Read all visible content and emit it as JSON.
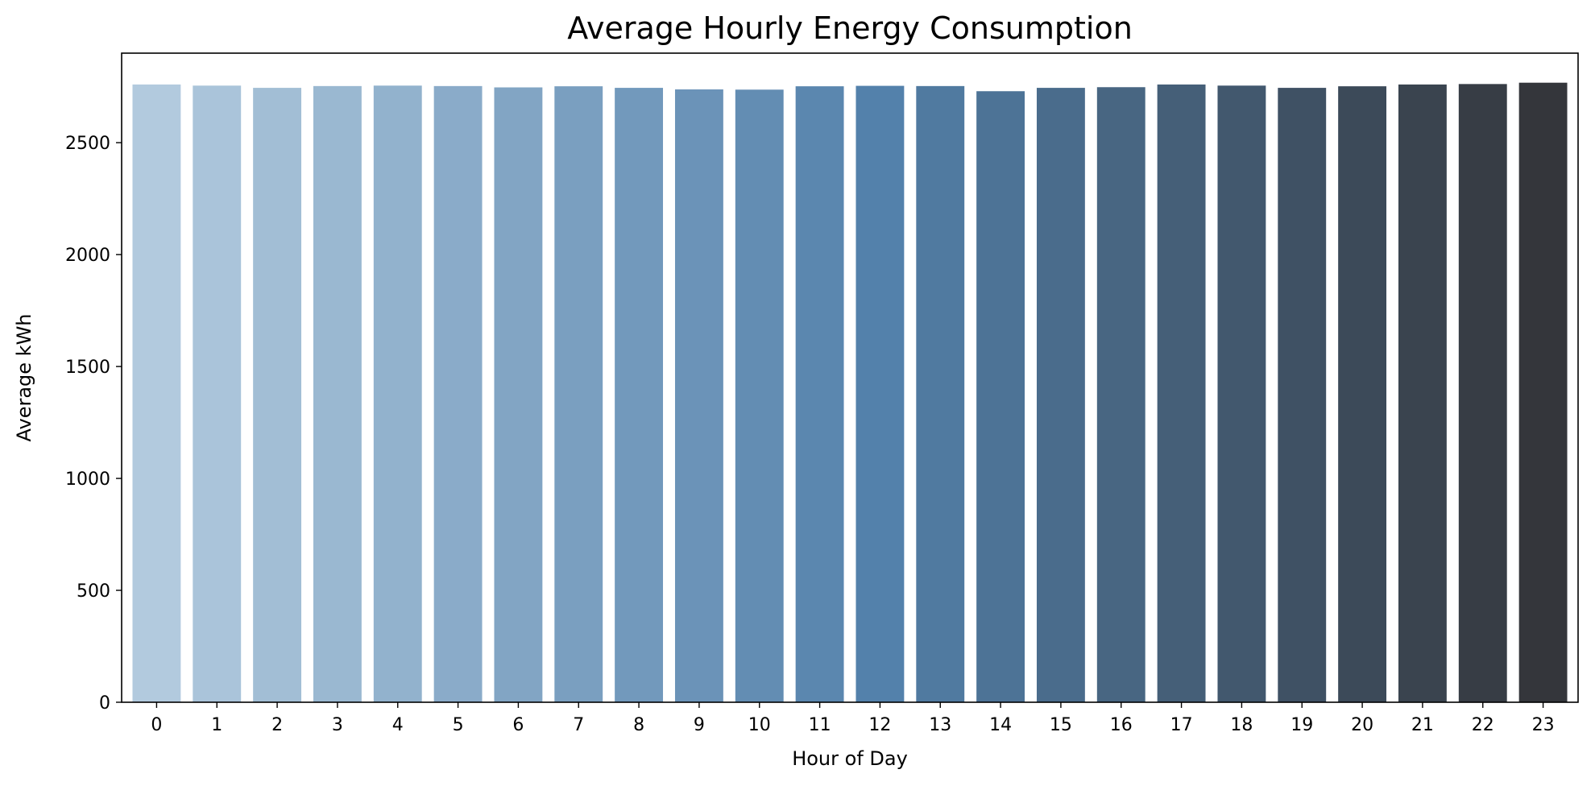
{
  "chart_data": {
    "type": "bar",
    "title": "Average Hourly Energy Consumption",
    "xlabel": "Hour of Day",
    "ylabel": "Average kWh",
    "categories": [
      "0",
      "1",
      "2",
      "3",
      "4",
      "5",
      "6",
      "7",
      "8",
      "9",
      "10",
      "11",
      "12",
      "13",
      "14",
      "15",
      "16",
      "17",
      "18",
      "19",
      "20",
      "21",
      "22",
      "23"
    ],
    "values": [
      2760,
      2755,
      2745,
      2753,
      2755,
      2753,
      2747,
      2752,
      2745,
      2738,
      2737,
      2752,
      2754,
      2753,
      2730,
      2745,
      2748,
      2760,
      2755,
      2745,
      2752,
      2760,
      2762,
      2768
    ],
    "ylim": [
      0,
      2900
    ],
    "yticks": [
      0,
      500,
      1000,
      1500,
      2000,
      2500
    ],
    "grid": false,
    "palette_start": "#b2cade",
    "palette_mid": "#5381ab",
    "palette_end": "#34363b"
  }
}
